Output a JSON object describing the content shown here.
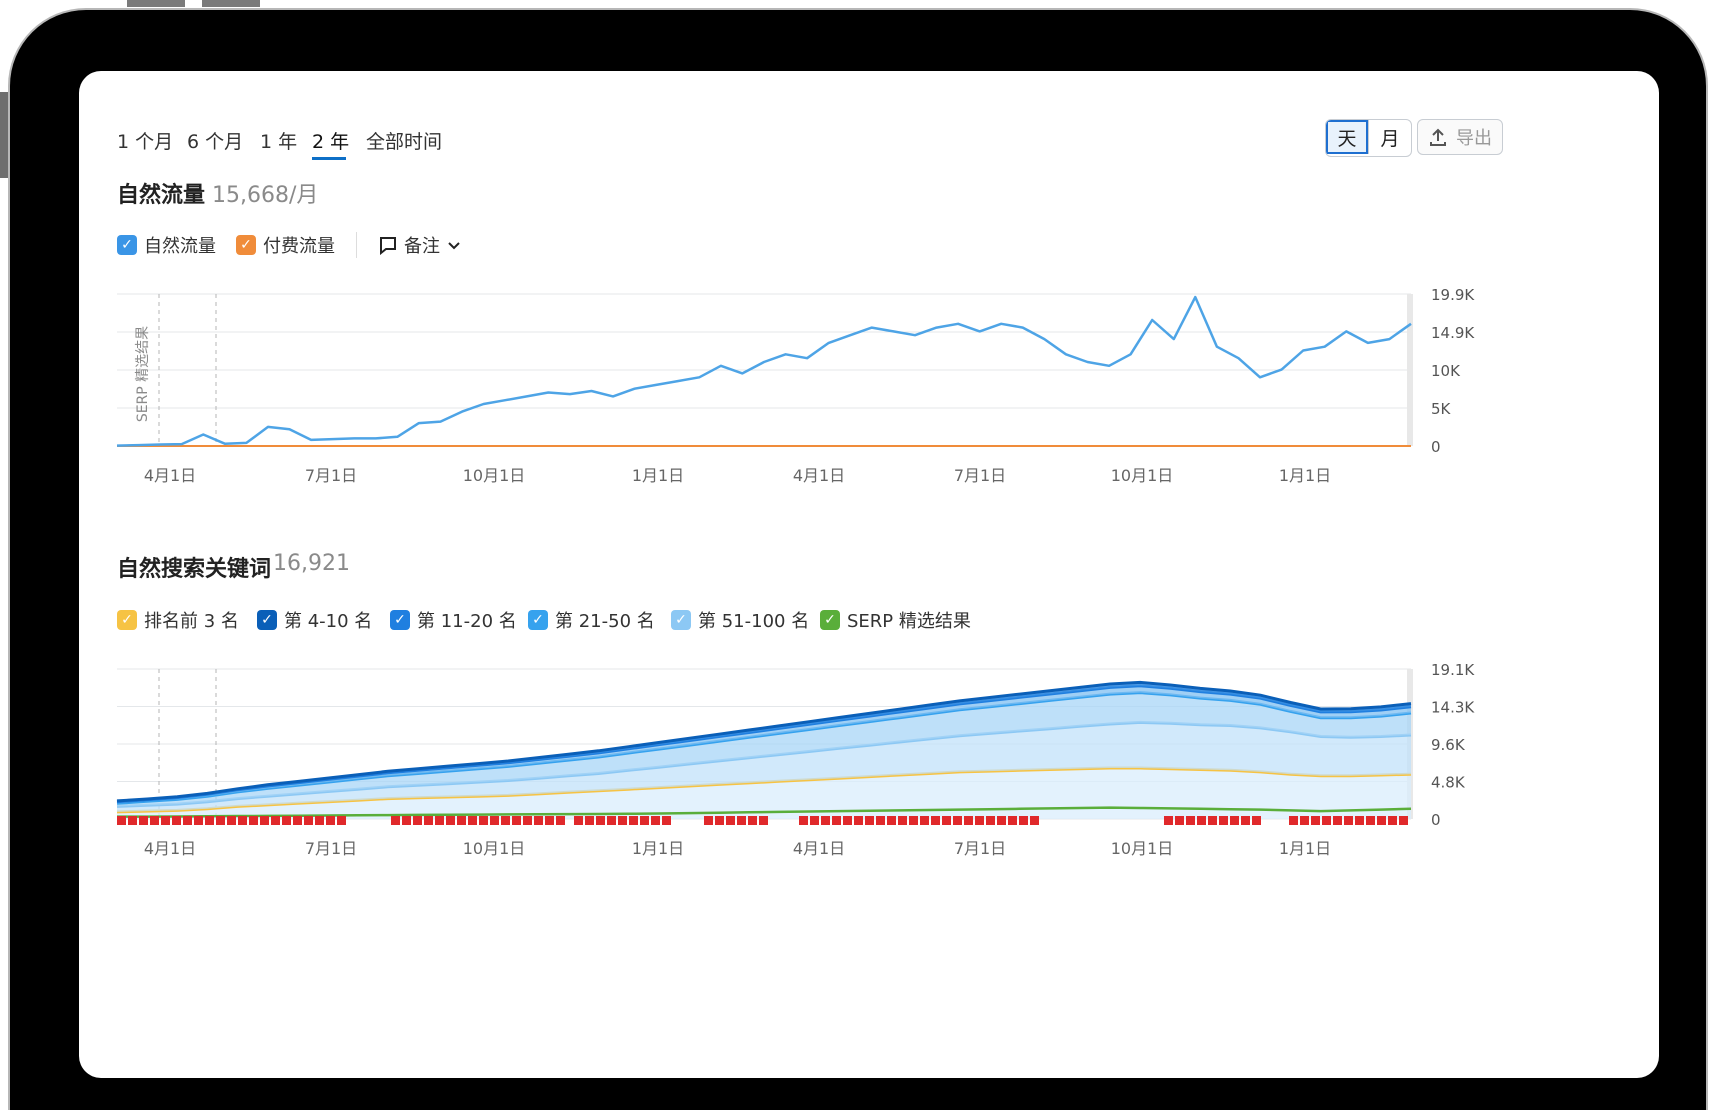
{
  "time_tabs": [
    {
      "label": "1 个月",
      "active": false
    },
    {
      "label": "6 个月",
      "active": false
    },
    {
      "label": "1 年",
      "active": false
    },
    {
      "label": "2 年",
      "active": true
    },
    {
      "label": "全部时间",
      "active": false
    }
  ],
  "granularity": {
    "day_label": "天",
    "month_label": "月",
    "selected": "天"
  },
  "export_label": "导出",
  "colors": {
    "organic": "#4ea4e6",
    "paid": "#f08c3a",
    "top3": "#f6c344",
    "pos4_10": "#0a5fb8",
    "pos11_20": "#1f7fe0",
    "pos21_50": "#36a2ee",
    "pos51_100": "#8cc8f4",
    "serp": "#5aae3a",
    "marker_red": "#e0292b"
  },
  "traffic": {
    "title": "自然流量",
    "value": "15,668/月",
    "legend": [
      {
        "label": "自然流量",
        "color": "#3a95e6",
        "checked": true
      },
      {
        "label": "付费流量",
        "color": "#f08c3a",
        "checked": true
      }
    ],
    "notes_label": "备注",
    "side_label": "SERP 精选结果",
    "chart_data": {
      "type": "line",
      "x_labels": [
        "4月1日",
        "7月1日",
        "10月1日",
        "1月1日",
        "4月1日",
        "7月1日",
        "10月1日",
        "1月1日"
      ],
      "y_ticks": [
        "19.9K",
        "14.9K",
        "10K",
        "5K",
        "0"
      ],
      "ylim": [
        0,
        19900
      ],
      "grid": true,
      "series": [
        {
          "key": "organic",
          "values": [
            50,
            120,
            200,
            250,
            1500,
            300,
            400,
            2500,
            2200,
            800,
            900,
            1000,
            1000,
            1200,
            3000,
            3200,
            4500,
            5500,
            6000,
            6500,
            7000,
            6800,
            7200,
            6500,
            7500,
            8000,
            8500,
            9000,
            10500,
            9500,
            11000,
            12000,
            11500,
            13500,
            14500,
            15500,
            15000,
            14500,
            15500,
            16000,
            15000,
            16000,
            15500,
            14000,
            12000,
            11000,
            10500,
            12000,
            16500,
            14000,
            19500,
            13000,
            11500,
            9000,
            10000,
            12500,
            13000,
            15000,
            13500,
            14000,
            16000
          ]
        }
      ]
    }
  },
  "keywords": {
    "title": "自然搜索关键词",
    "value": "16,921",
    "legend": [
      {
        "label": "排名前 3 名",
        "color": "#f6c344",
        "checked": true
      },
      {
        "label": "第 4-10 名",
        "color": "#0a5fb8",
        "checked": true
      },
      {
        "label": "第 11-20 名",
        "color": "#1f7fe0",
        "checked": true
      },
      {
        "label": "第 21-50 名",
        "color": "#36a2ee",
        "checked": true
      },
      {
        "label": "第 51-100 名",
        "color": "#8cc8f4",
        "checked": true
      },
      {
        "label": "SERP 精选结果",
        "color": "#5aae3a",
        "checked": true
      }
    ],
    "chart_data": {
      "type": "area",
      "x_labels": [
        "4月1日",
        "7月1日",
        "10月1日",
        "1月1日",
        "4月1日",
        "7月1日",
        "10月1日",
        "1月1日"
      ],
      "y_ticks": [
        "19.1K",
        "14.3K",
        "9.6K",
        "4.8K",
        "0"
      ],
      "ylim": [
        0,
        19100
      ],
      "grid": true,
      "series": [
        {
          "key": "top3",
          "values": [
            900,
            1000,
            1100,
            1300,
            1600,
            1800,
            2000,
            2200,
            2400,
            2600,
            2700,
            2800,
            2900,
            3000,
            3200,
            3400,
            3600,
            3800,
            4000,
            4200,
            4400,
            4600,
            4800,
            5000,
            5200,
            5400,
            5600,
            5800,
            6000,
            6100,
            6200,
            6300,
            6400,
            6500,
            6500,
            6400,
            6300,
            6200,
            6000,
            5700,
            5500,
            5500,
            5600,
            5700
          ]
        },
        {
          "key": "pos51_100",
          "values": [
            700,
            750,
            800,
            900,
            1000,
            1100,
            1200,
            1300,
            1400,
            1500,
            1600,
            1700,
            1800,
            1900,
            2000,
            2100,
            2200,
            2400,
            2600,
            2800,
            3000,
            3200,
            3400,
            3600,
            3800,
            4000,
            4200,
            4400,
            4600,
            4800,
            5000,
            5200,
            5400,
            5600,
            5800,
            5800,
            5700,
            5700,
            5600,
            5400,
            5000,
            4900,
            4900,
            5000
          ]
        },
        {
          "key": "pos21_50",
          "values": [
            400,
            500,
            600,
            700,
            850,
            1000,
            1100,
            1200,
            1300,
            1400,
            1500,
            1600,
            1700,
            1800,
            1900,
            2000,
            2100,
            2200,
            2300,
            2400,
            2500,
            2600,
            2700,
            2800,
            2900,
            3000,
            3100,
            3200,
            3300,
            3400,
            3500,
            3600,
            3700,
            3800,
            3800,
            3600,
            3400,
            3200,
            3000,
            2600,
            2400,
            2500,
            2600,
            2800
          ]
        },
        {
          "key": "pos11_20",
          "values": [
            200,
            200,
            220,
            240,
            270,
            300,
            320,
            340,
            360,
            380,
            400,
            420,
            440,
            460,
            480,
            500,
            520,
            540,
            560,
            580,
            600,
            620,
            640,
            660,
            680,
            700,
            720,
            740,
            760,
            780,
            800,
            820,
            840,
            860,
            860,
            840,
            820,
            800,
            780,
            760,
            740,
            760,
            780,
            800
          ]
        },
        {
          "key": "pos4_10",
          "values": [
            100,
            100,
            110,
            120,
            130,
            150,
            160,
            170,
            180,
            190,
            200,
            210,
            220,
            230,
            240,
            250,
            260,
            270,
            280,
            290,
            300,
            310,
            320,
            330,
            340,
            350,
            360,
            370,
            380,
            390,
            400,
            410,
            420,
            430,
            430,
            420,
            410,
            400,
            390,
            380,
            370,
            380,
            390,
            400
          ]
        },
        {
          "key": "serp",
          "values": [
            300,
            300,
            320,
            350,
            380,
            400,
            420,
            450,
            480,
            500,
            520,
            540,
            560,
            580,
            600,
            620,
            640,
            660,
            700,
            750,
            800,
            850,
            900,
            950,
            1000,
            1050,
            1100,
            1150,
            1200,
            1250,
            1300,
            1350,
            1400,
            1450,
            1400,
            1350,
            1300,
            1250,
            1200,
            1100,
            1000,
            1100,
            1200,
            1300
          ]
        }
      ]
    }
  }
}
